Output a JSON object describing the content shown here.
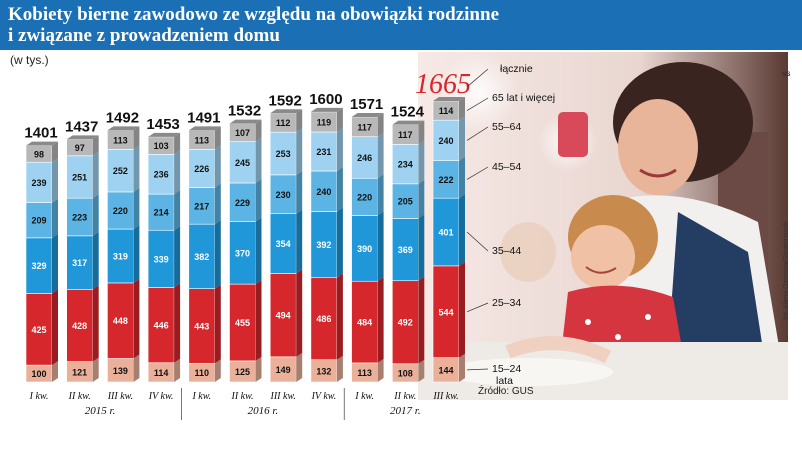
{
  "header": {
    "title_line1": "Kobiety bierne zawodowo ze względu na obowiązki rodzinne",
    "title_line2": "i związane z prowadzeniem domu",
    "unit": "(w tys.)"
  },
  "side": {
    "ns": "NS",
    "photo_credit": "fot. Alena Ozerova/Shutterstock",
    "source": "Źródło: GUS"
  },
  "colors": {
    "title_bg": "#1b6fb5",
    "c15_24": "#eab09a",
    "c25_34": "#d5272c",
    "c35_44": "#1f97d9",
    "c45_54": "#5cb4e4",
    "c55_64": "#9ed2f0",
    "c65": "#b8b8b8",
    "highlight": "#d7262b"
  },
  "chart_data": {
    "type": "bar",
    "stacked": true,
    "unit": "tys.",
    "categories": [
      "I kw.",
      "II kw.",
      "III kw.",
      "IV kw.",
      "I kw.",
      "II kw.",
      "III kw.",
      "IV kw.",
      "I kw.",
      "II kw.",
      "III kw."
    ],
    "years": [
      {
        "label": "2015 r.",
        "from": 0,
        "to": 3
      },
      {
        "label": "2016 r.",
        "from": 4,
        "to": 7
      },
      {
        "label": "2017 r.",
        "from": 8,
        "to": 10
      }
    ],
    "totals": [
      1401,
      1437,
      1492,
      1453,
      1491,
      1532,
      1592,
      1600,
      1571,
      1524,
      1665
    ],
    "highlight_index": 10,
    "series": [
      {
        "name": "15–24 lata",
        "color_key": "c15_24",
        "values": [
          100,
          121,
          139,
          114,
          110,
          125,
          149,
          132,
          113,
          108,
          144
        ]
      },
      {
        "name": "25–34",
        "color_key": "c25_34",
        "values": [
          425,
          428,
          448,
          446,
          443,
          455,
          494,
          486,
          484,
          492,
          544
        ]
      },
      {
        "name": "35–44",
        "color_key": "c35_44",
        "values": [
          329,
          317,
          319,
          339,
          382,
          370,
          354,
          392,
          390,
          369,
          401
        ]
      },
      {
        "name": "45–54",
        "color_key": "c45_54",
        "values": [
          209,
          223,
          220,
          214,
          217,
          229,
          230,
          240,
          220,
          205,
          222
        ]
      },
      {
        "name": "55–64",
        "color_key": "c55_64",
        "values": [
          239,
          251,
          252,
          236,
          226,
          245,
          253,
          231,
          246,
          234,
          240
        ]
      },
      {
        "name": "65 lat i więcej",
        "color_key": "c65",
        "values": [
          98,
          97,
          113,
          103,
          113,
          107,
          112,
          119,
          117,
          117,
          114
        ]
      }
    ],
    "total_label": "łącznie",
    "legend_15_24_line1": "15–24",
    "legend_15_24_line2": "lata"
  }
}
